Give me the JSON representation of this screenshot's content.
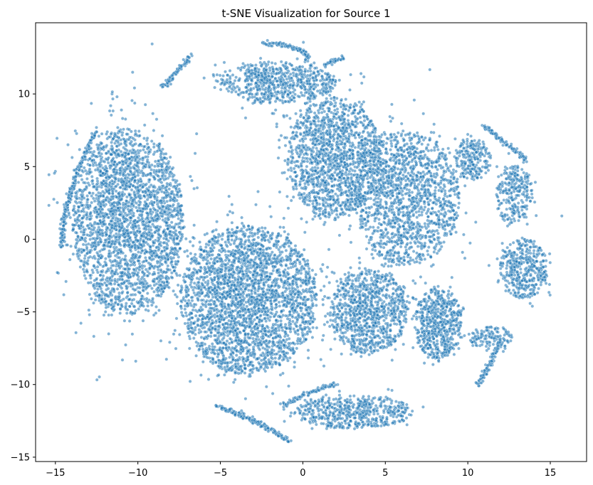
{
  "chart_data": {
    "type": "scatter",
    "title": "t-SNE Visualization for Source 1",
    "xlabel": "",
    "ylabel": "",
    "xlim": [
      -16.2,
      17.2
    ],
    "ylim": [
      -15.3,
      14.9
    ],
    "x_ticks": [
      -15,
      -10,
      -5,
      0,
      5,
      10,
      15
    ],
    "y_ticks": [
      -15,
      -10,
      -5,
      0,
      5,
      10
    ],
    "x_tick_labels": [
      "−15",
      "−10",
      "−5",
      "0",
      "5",
      "10",
      "15"
    ],
    "y_tick_labels": [
      "−15",
      "−10",
      "−5",
      "0",
      "5",
      "10"
    ],
    "grid": false,
    "legend": "none",
    "marker_color": "#1f77b4",
    "marker_edge_color": "#ffffff",
    "series": [
      {
        "clusters": [
          {
            "kind": "blob",
            "center": [
              -10.6,
              1.2
            ],
            "spread": [
              2.1,
              4.0
            ],
            "count": 2600
          },
          {
            "kind": "blob",
            "center": [
              -3.3,
              -4.2
            ],
            "spread": [
              2.6,
              3.2
            ],
            "count": 2800
          },
          {
            "kind": "blob",
            "center": [
              1.9,
              5.6
            ],
            "spread": [
              1.8,
              2.6
            ],
            "count": 1500
          },
          {
            "kind": "blob",
            "center": [
              6.3,
              2.8
            ],
            "spread": [
              2.0,
              2.9
            ],
            "count": 1500
          },
          {
            "kind": "blob",
            "center": [
              4.0,
              -5.0
            ],
            "spread": [
              1.5,
              1.8
            ],
            "count": 950
          },
          {
            "kind": "blob",
            "center": [
              8.2,
              -5.8
            ],
            "spread": [
              0.9,
              1.6
            ],
            "count": 600
          },
          {
            "kind": "blob",
            "center": [
              13.4,
              -2.0
            ],
            "spread": [
              0.9,
              1.3
            ],
            "count": 420
          },
          {
            "kind": "blob",
            "center": [
              12.8,
              3.0
            ],
            "spread": [
              0.7,
              1.3
            ],
            "count": 260
          },
          {
            "kind": "blob",
            "center": [
              10.3,
              5.5
            ],
            "spread": [
              0.7,
              0.9
            ],
            "count": 220
          },
          {
            "kind": "blob",
            "center": [
              -1.5,
              10.8
            ],
            "spread": [
              2.2,
              0.9
            ],
            "count": 650
          },
          {
            "kind": "blob",
            "center": [
              3.1,
              -11.9
            ],
            "spread": [
              2.3,
              0.7
            ],
            "count": 550
          },
          {
            "kind": "blob",
            "center": [
              11.4,
              -6.8
            ],
            "spread": [
              0.8,
              0.5
            ],
            "count": 120
          },
          {
            "kind": "arc",
            "from": [
              -14.6,
              -0.5
            ],
            "via": [
              -14.6,
              3.0
            ],
            "to": [
              -12.5,
              7.5
            ],
            "count": 220
          },
          {
            "kind": "arc",
            "from": [
              -8.5,
              10.5
            ],
            "via": [
              -7.7,
              11.4
            ],
            "to": [
              -6.8,
              12.6
            ],
            "count": 90
          },
          {
            "kind": "arc",
            "from": [
              -2.5,
              13.5
            ],
            "via": [
              0.0,
              13.4
            ],
            "to": [
              0.3,
              12.4
            ],
            "count": 100
          },
          {
            "kind": "arc",
            "from": [
              -5.2,
              -11.5
            ],
            "via": [
              -3.0,
              -12.3
            ],
            "to": [
              -0.8,
              -13.9
            ],
            "count": 160
          },
          {
            "kind": "arc",
            "from": [
              -1.2,
              -11.5
            ],
            "via": [
              0.5,
              -10.3
            ],
            "to": [
              2.0,
              -10.0
            ],
            "count": 90
          },
          {
            "kind": "arc",
            "from": [
              10.6,
              -10.0
            ],
            "via": [
              11.3,
              -8.8
            ],
            "to": [
              12.0,
              -7.0
            ],
            "count": 90
          },
          {
            "kind": "arc",
            "from": [
              11.0,
              7.8
            ],
            "via": [
              12.1,
              6.8
            ],
            "to": [
              13.6,
              5.4
            ],
            "count": 90
          },
          {
            "kind": "arc",
            "from": [
              1.3,
              12.0
            ],
            "via": [
              1.9,
              12.3
            ],
            "to": [
              2.5,
              12.5
            ],
            "count": 40
          },
          {
            "kind": "point",
            "center": [
              15.7,
              1.6
            ],
            "count": 1
          }
        ]
      }
    ]
  }
}
